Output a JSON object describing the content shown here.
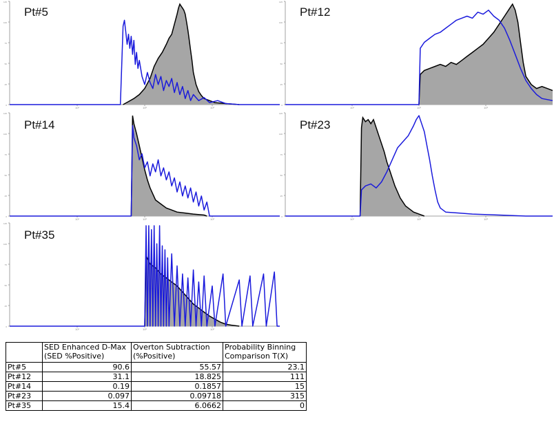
{
  "colors": {
    "gray_fill": "#a6a6a6",
    "black_line": "#000000",
    "blue_line": "#1a1adc",
    "axis": "#a0a0a0"
  },
  "chart_data": [
    {
      "type": "area",
      "label": "Pt#5",
      "xscale": "log",
      "xticks": [
        "10¹",
        "10²",
        "10³"
      ],
      "yticks": [
        "0",
        "25",
        "50",
        "75",
        "100",
        "125"
      ],
      "gray_start": 0.42,
      "gray_end": 0.68,
      "gray": [
        [
          0.42,
          0
        ],
        [
          0.44,
          3
        ],
        [
          0.46,
          6
        ],
        [
          0.48,
          10
        ],
        [
          0.5,
          16
        ],
        [
          0.52,
          26
        ],
        [
          0.535,
          38
        ],
        [
          0.55,
          46
        ],
        [
          0.565,
          52
        ],
        [
          0.58,
          60
        ],
        [
          0.59,
          66
        ],
        [
          0.6,
          70
        ],
        [
          0.61,
          80
        ],
        [
          0.62,
          90
        ],
        [
          0.625,
          96
        ],
        [
          0.63,
          100
        ],
        [
          0.635,
          98
        ],
        [
          0.64,
          96
        ],
        [
          0.645,
          94
        ],
        [
          0.65,
          90
        ],
        [
          0.655,
          82
        ],
        [
          0.66,
          74
        ],
        [
          0.665,
          64
        ],
        [
          0.67,
          54
        ],
        [
          0.675,
          44
        ],
        [
          0.68,
          32
        ],
        [
          0.69,
          20
        ],
        [
          0.7,
          13
        ],
        [
          0.71,
          9
        ],
        [
          0.72,
          6
        ],
        [
          0.74,
          4
        ],
        [
          0.76,
          2
        ],
        [
          0.8,
          1
        ],
        [
          0.85,
          0
        ]
      ],
      "blue": [
        [
          0.41,
          0
        ],
        [
          0.42,
          78
        ],
        [
          0.425,
          84
        ],
        [
          0.43,
          72
        ],
        [
          0.435,
          60
        ],
        [
          0.44,
          70
        ],
        [
          0.445,
          56
        ],
        [
          0.45,
          68
        ],
        [
          0.455,
          50
        ],
        [
          0.46,
          64
        ],
        [
          0.465,
          40
        ],
        [
          0.47,
          52
        ],
        [
          0.475,
          36
        ],
        [
          0.48,
          44
        ],
        [
          0.49,
          28
        ],
        [
          0.5,
          20
        ],
        [
          0.51,
          32
        ],
        [
          0.52,
          22
        ],
        [
          0.53,
          16
        ],
        [
          0.54,
          30
        ],
        [
          0.55,
          20
        ],
        [
          0.56,
          28
        ],
        [
          0.57,
          14
        ],
        [
          0.58,
          24
        ],
        [
          0.59,
          18
        ],
        [
          0.6,
          26
        ],
        [
          0.61,
          12
        ],
        [
          0.62,
          22
        ],
        [
          0.63,
          10
        ],
        [
          0.64,
          18
        ],
        [
          0.65,
          6
        ],
        [
          0.66,
          14
        ],
        [
          0.67,
          4
        ],
        [
          0.68,
          10
        ],
        [
          0.7,
          4
        ],
        [
          0.72,
          7
        ],
        [
          0.74,
          2
        ],
        [
          0.77,
          4
        ],
        [
          0.8,
          1
        ],
        [
          0.85,
          0
        ]
      ]
    },
    {
      "type": "area",
      "label": "Pt#12",
      "xscale": "log",
      "xticks": [
        "10¹",
        "10²",
        "10³"
      ],
      "yticks": [
        "0",
        "25",
        "50",
        "75",
        "100",
        "125"
      ],
      "gray_start": 0.5,
      "gray_end": 1.0,
      "gray": [
        [
          0.5,
          0
        ],
        [
          0.505,
          30
        ],
        [
          0.52,
          34
        ],
        [
          0.54,
          36
        ],
        [
          0.56,
          38
        ],
        [
          0.58,
          40
        ],
        [
          0.6,
          38
        ],
        [
          0.62,
          42
        ],
        [
          0.64,
          40
        ],
        [
          0.66,
          44
        ],
        [
          0.68,
          48
        ],
        [
          0.7,
          52
        ],
        [
          0.72,
          56
        ],
        [
          0.74,
          60
        ],
        [
          0.76,
          66
        ],
        [
          0.78,
          72
        ],
        [
          0.8,
          80
        ],
        [
          0.82,
          88
        ],
        [
          0.84,
          96
        ],
        [
          0.85,
          100
        ],
        [
          0.86,
          94
        ],
        [
          0.87,
          82
        ],
        [
          0.88,
          62
        ],
        [
          0.89,
          42
        ],
        [
          0.9,
          28
        ],
        [
          0.92,
          20
        ],
        [
          0.94,
          16
        ],
        [
          0.96,
          18
        ],
        [
          0.98,
          16
        ],
        [
          1.0,
          14
        ]
      ],
      "blue": [
        [
          0.5,
          0
        ],
        [
          0.505,
          56
        ],
        [
          0.52,
          62
        ],
        [
          0.54,
          66
        ],
        [
          0.56,
          70
        ],
        [
          0.58,
          72
        ],
        [
          0.6,
          76
        ],
        [
          0.62,
          80
        ],
        [
          0.64,
          84
        ],
        [
          0.66,
          86
        ],
        [
          0.68,
          88
        ],
        [
          0.7,
          86
        ],
        [
          0.72,
          92
        ],
        [
          0.74,
          90
        ],
        [
          0.76,
          94
        ],
        [
          0.78,
          88
        ],
        [
          0.8,
          84
        ],
        [
          0.82,
          76
        ],
        [
          0.84,
          64
        ],
        [
          0.86,
          50
        ],
        [
          0.88,
          36
        ],
        [
          0.9,
          24
        ],
        [
          0.92,
          16
        ],
        [
          0.94,
          10
        ],
        [
          0.96,
          6
        ],
        [
          0.98,
          5
        ],
        [
          1.0,
          4
        ]
      ]
    },
    {
      "type": "area",
      "label": "Pt#14",
      "xscale": "log",
      "xticks": [
        "10¹",
        "10²",
        "10³"
      ],
      "yticks": [
        "0",
        "25",
        "50",
        "75",
        "100",
        "125"
      ],
      "gray_start": 0.45,
      "gray_end": 0.73,
      "gray": [
        [
          0.45,
          0
        ],
        [
          0.455,
          100
        ],
        [
          0.46,
          92
        ],
        [
          0.47,
          82
        ],
        [
          0.48,
          70
        ],
        [
          0.49,
          58
        ],
        [
          0.5,
          46
        ],
        [
          0.51,
          36
        ],
        [
          0.52,
          28
        ],
        [
          0.53,
          22
        ],
        [
          0.54,
          16
        ],
        [
          0.56,
          12
        ],
        [
          0.58,
          8
        ],
        [
          0.6,
          6
        ],
        [
          0.62,
          4
        ],
        [
          0.65,
          3
        ],
        [
          0.68,
          2
        ],
        [
          0.72,
          1
        ],
        [
          0.73,
          0
        ]
      ],
      "blue": [
        [
          0.45,
          0
        ],
        [
          0.455,
          90
        ],
        [
          0.46,
          78
        ],
        [
          0.47,
          70
        ],
        [
          0.48,
          56
        ],
        [
          0.49,
          62
        ],
        [
          0.5,
          48
        ],
        [
          0.51,
          54
        ],
        [
          0.52,
          40
        ],
        [
          0.53,
          52
        ],
        [
          0.54,
          44
        ],
        [
          0.55,
          56
        ],
        [
          0.56,
          40
        ],
        [
          0.57,
          48
        ],
        [
          0.58,
          36
        ],
        [
          0.59,
          44
        ],
        [
          0.6,
          30
        ],
        [
          0.61,
          38
        ],
        [
          0.62,
          24
        ],
        [
          0.63,
          34
        ],
        [
          0.64,
          20
        ],
        [
          0.65,
          30
        ],
        [
          0.66,
          18
        ],
        [
          0.67,
          28
        ],
        [
          0.68,
          14
        ],
        [
          0.69,
          24
        ],
        [
          0.7,
          10
        ],
        [
          0.71,
          20
        ],
        [
          0.72,
          6
        ],
        [
          0.73,
          14
        ],
        [
          0.74,
          0
        ]
      ]
    },
    {
      "type": "area",
      "label": "Pt#23",
      "xscale": "log",
      "xticks": [
        "10¹",
        "10²",
        "10³"
      ],
      "yticks": [
        "0",
        "25",
        "50",
        "75",
        "100",
        "125"
      ],
      "gray_start": 0.28,
      "gray_end": 0.52,
      "gray": [
        [
          0.28,
          0
        ],
        [
          0.285,
          88
        ],
        [
          0.29,
          98
        ],
        [
          0.3,
          94
        ],
        [
          0.31,
          96
        ],
        [
          0.32,
          92
        ],
        [
          0.33,
          96
        ],
        [
          0.34,
          88
        ],
        [
          0.35,
          80
        ],
        [
          0.36,
          72
        ],
        [
          0.37,
          64
        ],
        [
          0.38,
          54
        ],
        [
          0.39,
          46
        ],
        [
          0.4,
          38
        ],
        [
          0.41,
          30
        ],
        [
          0.42,
          24
        ],
        [
          0.43,
          18
        ],
        [
          0.44,
          14
        ],
        [
          0.45,
          10
        ],
        [
          0.46,
          8
        ],
        [
          0.48,
          4
        ],
        [
          0.5,
          2
        ],
        [
          0.52,
          0
        ]
      ],
      "blue": [
        [
          0.28,
          0
        ],
        [
          0.285,
          26
        ],
        [
          0.3,
          30
        ],
        [
          0.32,
          32
        ],
        [
          0.34,
          28
        ],
        [
          0.36,
          34
        ],
        [
          0.38,
          44
        ],
        [
          0.4,
          56
        ],
        [
          0.42,
          68
        ],
        [
          0.44,
          74
        ],
        [
          0.46,
          80
        ],
        [
          0.48,
          90
        ],
        [
          0.49,
          96
        ],
        [
          0.5,
          100
        ],
        [
          0.51,
          92
        ],
        [
          0.52,
          84
        ],
        [
          0.53,
          70
        ],
        [
          0.54,
          56
        ],
        [
          0.55,
          40
        ],
        [
          0.56,
          26
        ],
        [
          0.57,
          14
        ],
        [
          0.58,
          8
        ],
        [
          0.6,
          4
        ],
        [
          0.65,
          3
        ],
        [
          0.7,
          2
        ],
        [
          0.8,
          1
        ],
        [
          0.9,
          0
        ]
      ]
    },
    {
      "type": "area",
      "label": "Pt#35",
      "xscale": "log",
      "xticks": [
        "10¹",
        "10²",
        "10³"
      ],
      "yticks": [
        "0",
        "25",
        "50",
        "75",
        "100",
        "125"
      ],
      "gray_start": 0.5,
      "gray_end": 0.85,
      "gray": [
        [
          0.5,
          0
        ],
        [
          0.505,
          70
        ],
        [
          0.52,
          62
        ],
        [
          0.54,
          58
        ],
        [
          0.56,
          52
        ],
        [
          0.58,
          48
        ],
        [
          0.6,
          44
        ],
        [
          0.62,
          40
        ],
        [
          0.64,
          34
        ],
        [
          0.66,
          28
        ],
        [
          0.68,
          22
        ],
        [
          0.7,
          18
        ],
        [
          0.72,
          14
        ],
        [
          0.74,
          10
        ],
        [
          0.76,
          7
        ],
        [
          0.78,
          4
        ],
        [
          0.8,
          2
        ],
        [
          0.82,
          1
        ],
        [
          0.85,
          0
        ]
      ],
      "blue": [
        [
          0.5,
          0
        ],
        [
          0.505,
          100
        ],
        [
          0.51,
          0
        ],
        [
          0.515,
          100
        ],
        [
          0.52,
          0
        ],
        [
          0.525,
          96
        ],
        [
          0.53,
          0
        ],
        [
          0.535,
          100
        ],
        [
          0.54,
          0
        ],
        [
          0.545,
          82
        ],
        [
          0.55,
          0
        ],
        [
          0.555,
          100
        ],
        [
          0.56,
          0
        ],
        [
          0.565,
          80
        ],
        [
          0.57,
          0
        ],
        [
          0.575,
          76
        ],
        [
          0.58,
          0
        ],
        [
          0.585,
          68
        ],
        [
          0.59,
          0
        ],
        [
          0.6,
          72
        ],
        [
          0.61,
          0
        ],
        [
          0.62,
          60
        ],
        [
          0.63,
          0
        ],
        [
          0.64,
          52
        ],
        [
          0.65,
          0
        ],
        [
          0.66,
          48
        ],
        [
          0.67,
          0
        ],
        [
          0.68,
          56
        ],
        [
          0.69,
          0
        ],
        [
          0.7,
          44
        ],
        [
          0.71,
          0
        ],
        [
          0.72,
          50
        ],
        [
          0.73,
          0
        ],
        [
          0.75,
          40
        ],
        [
          0.76,
          0
        ],
        [
          0.79,
          52
        ],
        [
          0.8,
          0
        ],
        [
          0.85,
          46
        ],
        [
          0.86,
          0
        ],
        [
          0.89,
          50
        ],
        [
          0.9,
          0
        ],
        [
          0.94,
          52
        ],
        [
          0.95,
          0
        ],
        [
          0.98,
          54
        ],
        [
          0.99,
          0
        ]
      ]
    }
  ],
  "table": {
    "headers": [
      [
        "",
        ""
      ],
      [
        "SED Enhanced D-Max",
        "(SED %Positive)"
      ],
      [
        "Overton Subtraction",
        "(%Positive)"
      ],
      [
        "Probability Binning",
        "Comparison T(X)"
      ]
    ],
    "rows": [
      [
        "Pt#5",
        "90.6",
        "55.57",
        "23.1"
      ],
      [
        "Pt#12",
        "31.1",
        "18.825",
        "111"
      ],
      [
        "Pt#14",
        "0.19",
        "0.1857",
        "15"
      ],
      [
        "Pt#23",
        "0.097",
        "0.09718",
        "315"
      ],
      [
        "Pt#35",
        "15.4",
        "6.0662",
        "0"
      ]
    ]
  }
}
